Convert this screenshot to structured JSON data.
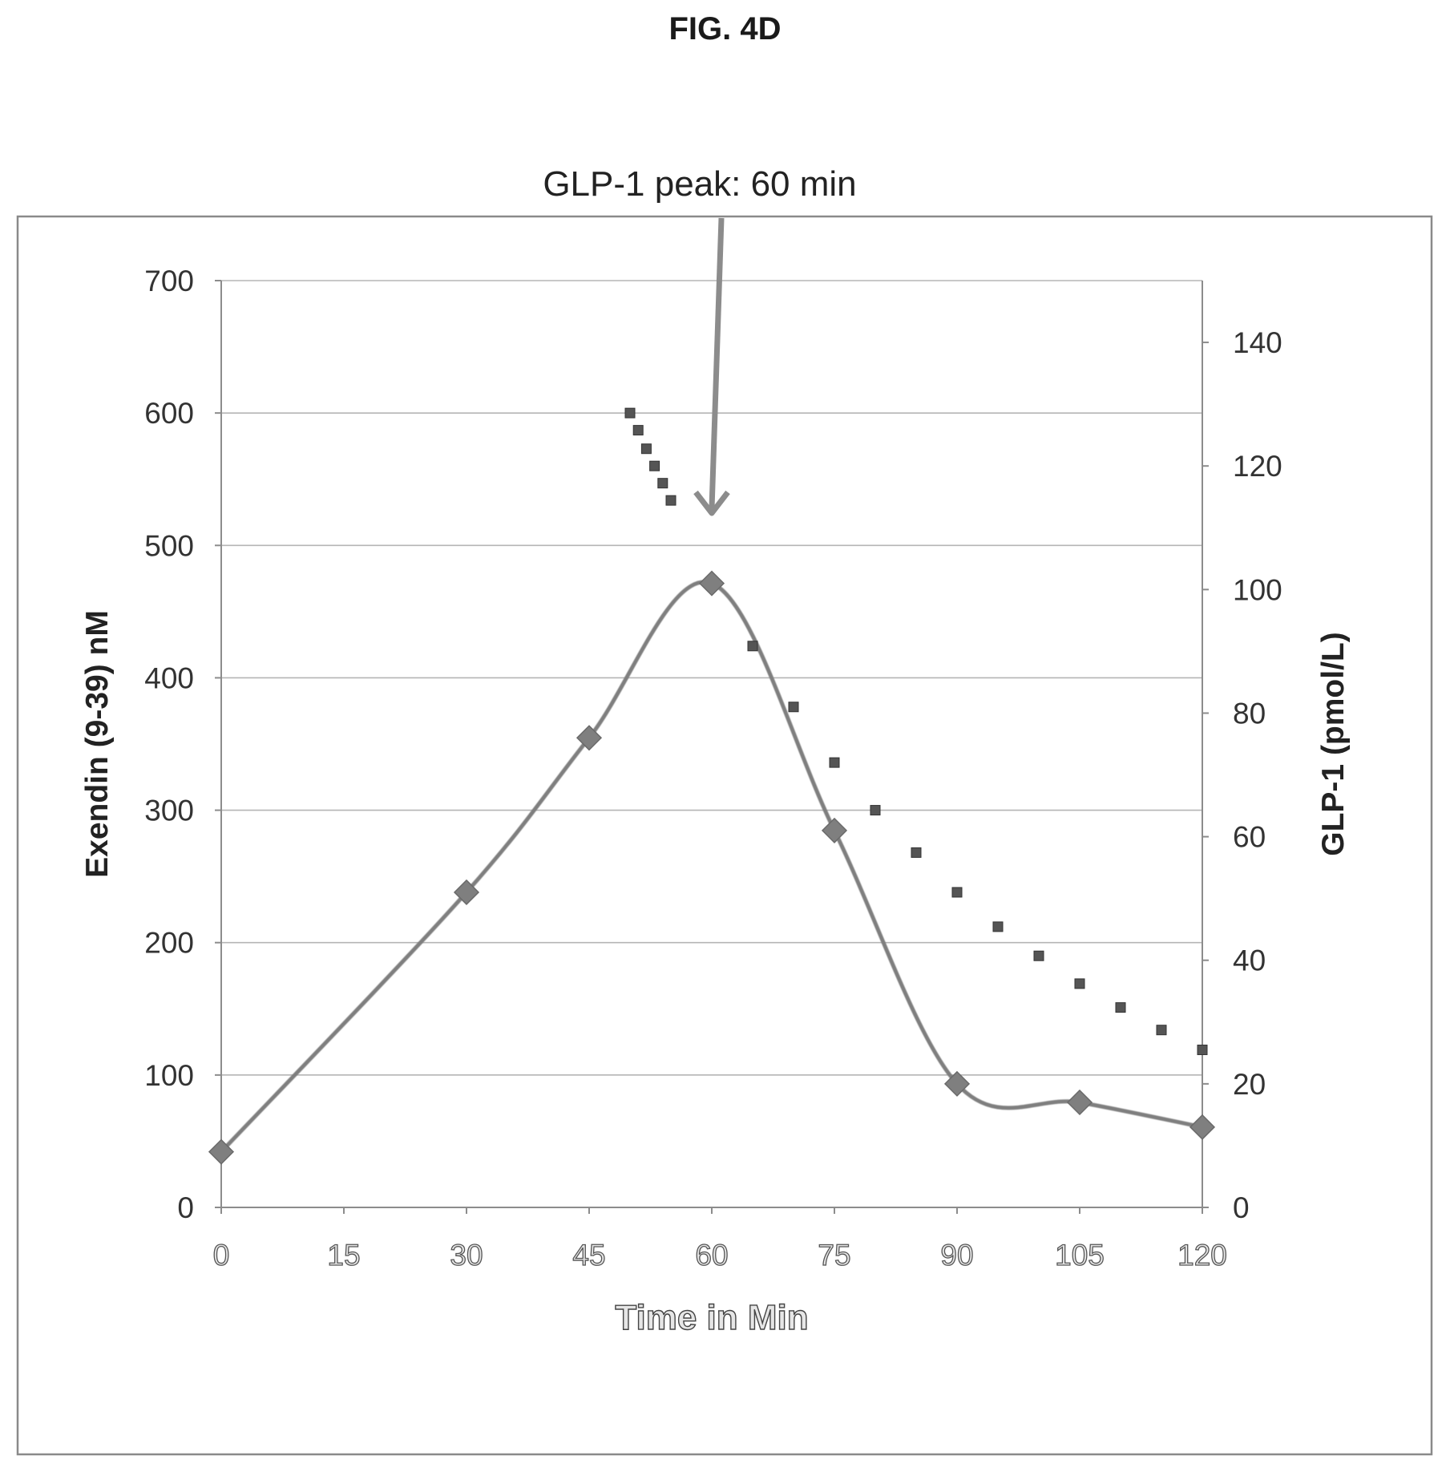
{
  "figure_label": "FIG. 4D",
  "chart_data": {
    "type": "line",
    "annotation": "GLP-1 peak: 60 min",
    "xlabel": "Time in Min",
    "ylabel": "Exendin (9-39) nM",
    "y2label": "GLP-1  (pmol/L)",
    "xlim": [
      0,
      120
    ],
    "ylim": [
      0,
      700
    ],
    "y2lim": [
      0,
      150
    ],
    "x_ticks": [
      "0",
      "15",
      "30",
      "45",
      "60",
      "75",
      "90",
      "105",
      "120"
    ],
    "y_ticks": [
      "0",
      "100",
      "200",
      "300",
      "400",
      "500",
      "600",
      "700"
    ],
    "y2_ticks": [
      "0",
      "20",
      "40",
      "60",
      "80",
      "100",
      "120",
      "140"
    ],
    "grid": true,
    "annotation_x": 60,
    "series": [
      {
        "axis": "right",
        "style": "smooth-line-diamond",
        "color": "#7f7f7f",
        "x": [
          0,
          30,
          45,
          60,
          75,
          90,
          105,
          120
        ],
        "y": [
          9,
          51,
          76,
          101,
          61,
          20,
          17,
          13
        ]
      },
      {
        "axis": "left",
        "style": "square-markers",
        "color": "#555555",
        "x": [
          50,
          51,
          52,
          53,
          54,
          55,
          65,
          70,
          75,
          80,
          85,
          90,
          95,
          100,
          105,
          110,
          115,
          120
        ],
        "y": [
          600,
          587,
          573,
          560,
          547,
          534,
          424,
          378,
          336,
          300,
          268,
          238,
          212,
          190,
          169,
          151,
          134,
          119
        ]
      }
    ]
  }
}
